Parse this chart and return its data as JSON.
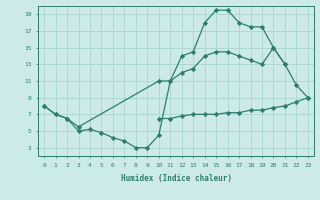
{
  "line1_x": [
    0,
    1,
    2,
    3,
    4,
    5,
    6,
    7,
    8,
    9,
    10,
    11,
    12,
    13,
    14,
    15,
    16,
    17,
    18,
    19,
    20,
    21,
    22,
    23
  ],
  "line1_y": [
    8.0,
    7.0,
    6.5,
    5.0,
    5.2,
    4.8,
    4.2,
    3.8,
    3.0,
    3.0,
    4.5,
    11.0,
    14.0,
    14.5,
    18.0,
    19.5,
    19.5,
    18.0,
    17.5,
    17.5,
    15.0,
    13.0,
    10.5,
    9.0
  ],
  "line2_x": [
    0,
    1,
    2,
    3,
    10,
    11,
    12,
    13,
    14,
    15,
    16,
    17,
    18,
    19,
    20,
    21
  ],
  "line2_y": [
    8.0,
    7.0,
    6.5,
    5.5,
    11.0,
    11.0,
    12.0,
    12.5,
    14.0,
    14.5,
    14.5,
    14.0,
    13.5,
    13.0,
    15.0,
    13.0
  ],
  "line3_x": [
    10,
    11,
    12,
    13,
    14,
    15,
    16,
    17,
    18,
    19,
    20,
    21,
    22,
    23
  ],
  "line3_y": [
    6.5,
    6.5,
    6.8,
    7.0,
    7.0,
    7.0,
    7.2,
    7.2,
    7.5,
    7.5,
    7.8,
    8.0,
    8.5,
    9.0
  ],
  "color": "#2E7D6E",
  "bg_color": "#cceae8",
  "grid_color": "#aad4d2",
  "xlabel": "Humidex (Indice chaleur)",
  "xlim": [
    -0.5,
    23.5
  ],
  "ylim": [
    2,
    20
  ],
  "yticks": [
    3,
    5,
    7,
    9,
    11,
    13,
    15,
    17,
    19
  ],
  "xticks": [
    0,
    1,
    2,
    3,
    4,
    5,
    6,
    7,
    8,
    9,
    10,
    11,
    12,
    13,
    14,
    15,
    16,
    17,
    18,
    19,
    20,
    21,
    22,
    23
  ],
  "marker": "D",
  "markersize": 2.2,
  "linewidth": 0.9
}
